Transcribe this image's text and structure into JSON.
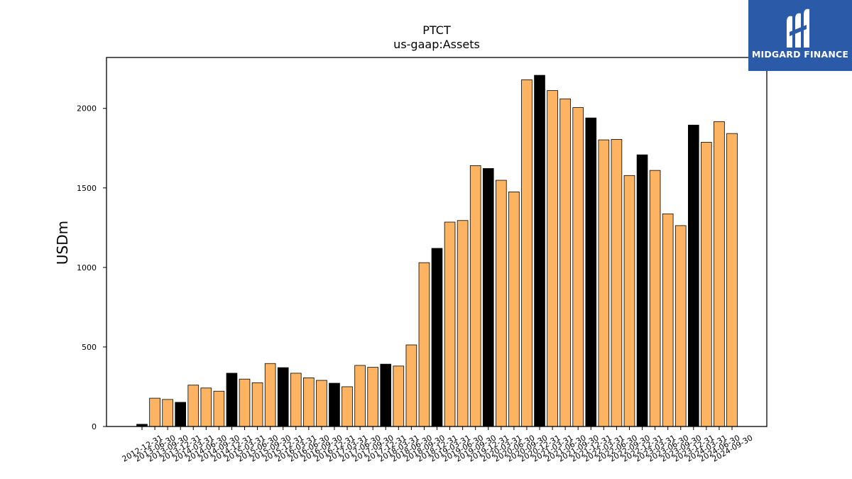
{
  "logo": {
    "text": "MIDGARD FINANCE",
    "background_color": "#2a5aa8",
    "icon": "midgard-m-logo-icon"
  },
  "chart_data": {
    "type": "bar",
    "title": "PTCT",
    "subtitle": "us-gaap:Assets",
    "ylabel": "USDm",
    "xlabel": "",
    "ylim": [
      0,
      2320
    ],
    "yticks": [
      0,
      500,
      1000,
      1500,
      2000
    ],
    "grid": false,
    "legend": "none",
    "colors": {
      "quarter": "#FDB462",
      "annual": "#000000",
      "edge": "#000000"
    },
    "categories": [
      "2012-12-31",
      "2013-06-30",
      "2013-09-30",
      "2013-12-31",
      "2014-03-31",
      "2014-06-30",
      "2014-09-30",
      "2014-12-31",
      "2015-03-31",
      "2015-06-30",
      "2015-09-30",
      "2015-12-31",
      "2016-03-31",
      "2016-06-30",
      "2016-09-30",
      "2016-12-31",
      "2017-03-31",
      "2017-06-30",
      "2017-09-30",
      "2017-12-31",
      "2018-03-31",
      "2018-06-30",
      "2018-09-30",
      "2018-12-31",
      "2019-03-31",
      "2019-06-30",
      "2019-09-30",
      "2019-12-31",
      "2020-03-31",
      "2020-06-30",
      "2020-09-30",
      "2020-12-31",
      "2021-03-31",
      "2021-06-30",
      "2021-09-30",
      "2021-12-31",
      "2022-03-31",
      "2022-06-30",
      "2022-09-30",
      "2022-12-31",
      "2023-03-31",
      "2023-06-30",
      "2023-09-30",
      "2023-12-31",
      "2024-03-31",
      "2024-06-30",
      "2024-09-30"
    ],
    "values": [
      14,
      178,
      170,
      152,
      260,
      242,
      222,
      335,
      298,
      275,
      396,
      370,
      335,
      306,
      290,
      272,
      250,
      384,
      372,
      392,
      380,
      513,
      1030,
      1120,
      1285,
      1295,
      1640,
      1622,
      1548,
      1475,
      2180,
      2208,
      2112,
      2060,
      2005,
      1940,
      1802,
      1805,
      1578,
      1708,
      1610,
      1337,
      1263,
      1895,
      1787,
      1917,
      1842
    ],
    "annual_flags": [
      true,
      false,
      false,
      true,
      false,
      false,
      false,
      true,
      false,
      false,
      false,
      true,
      false,
      false,
      false,
      true,
      false,
      false,
      false,
      true,
      false,
      false,
      false,
      true,
      false,
      false,
      false,
      true,
      false,
      false,
      false,
      true,
      false,
      false,
      false,
      true,
      false,
      false,
      false,
      true,
      false,
      false,
      false,
      true,
      false,
      false,
      false
    ]
  }
}
